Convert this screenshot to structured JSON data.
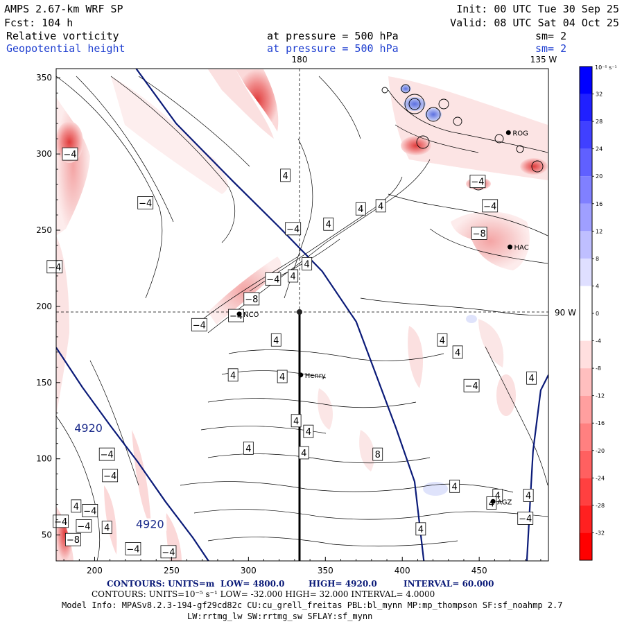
{
  "header": {
    "model": "AMPS 2.67-km WRF SP",
    "init": "Init: 00 UTC Tue 30 Sep 25",
    "fcst": "Fcst:  104 h",
    "valid": "Valid: 08 UTC Sat 04 Oct 25",
    "field1": {
      "name": "Relative vorticity",
      "pressure": "at pressure =  500 hPa",
      "sm": "sm= 2"
    },
    "field2": {
      "name": "Geopotential height",
      "pressure": "at pressure =  500 hPa",
      "sm": "sm= 2"
    }
  },
  "map_labels": {
    "top_180": "180",
    "top_135w": "135 W",
    "right_90w": "90 W"
  },
  "colors": {
    "height_contour": "#0a1a78",
    "positive": "#0000ff",
    "negative": "#ff0000",
    "neutral": "#ffffff",
    "text_blue": "#1f3fd0"
  },
  "stations": [
    {
      "name": "NCO",
      "x": 294,
      "y": 195
    },
    {
      "name": "Henry",
      "x": 334,
      "y": 155
    },
    {
      "name": "HAC",
      "x": 470,
      "y": 239
    },
    {
      "name": "ROG",
      "x": 469,
      "y": 314
    },
    {
      "name": "AGZ",
      "x": 459,
      "y": 72
    }
  ],
  "footer": {
    "line1_units": "CONTOURS:  UNITS=m",
    "line1_low": "LOW=  4800.0",
    "line1_high": "HIGH=  4920.0",
    "line1_interval": "INTERVAL=   60.000",
    "line2": "CONTOURS:  UNITS=10⁻⁵ s⁻¹  LOW=  -32.000        HIGH=  32.000        INTERVAL=   4.0000",
    "line3": "Model Info: MPASv8.2.3-194-gf29cd82c CU:cu_grell_freitas PBL:bl_mynn MP:mp_thompson SF:sf_noahmp 2.7",
    "line4": "LW:rrtmg_lw SW:rrtmg_sw SFLAY:sf_mynn"
  },
  "chart_data": {
    "type": "heatmap",
    "title": "Relative vorticity / Geopotential height at 500 hPa",
    "xlim": [
      175,
      495
    ],
    "ylim": [
      33,
      356
    ],
    "x_ticks": [
      200,
      250,
      300,
      350,
      400,
      450
    ],
    "y_ticks": [
      50,
      100,
      150,
      200,
      250,
      300,
      350
    ],
    "colorbar": {
      "unit_label": "10⁻⁵ s⁻¹",
      "levels": [
        -36,
        -32,
        -28,
        -24,
        -20,
        -16,
        -12,
        -8,
        -4,
        0,
        4,
        8,
        12,
        16,
        20,
        24,
        28,
        32,
        36
      ],
      "tick_labels": [
        "32",
        "28",
        "24",
        "20",
        "16",
        "12",
        "8",
        "4",
        "0",
        "-4",
        "-8",
        "-12",
        "-16",
        "-20",
        "-24",
        "-28",
        "-32"
      ],
      "tick_values": [
        32,
        28,
        24,
        20,
        16,
        12,
        8,
        4,
        0,
        -4,
        -8,
        -12,
        -16,
        -20,
        -24,
        -28,
        -32
      ]
    },
    "height_contours": {
      "unit": "m",
      "low": 4800.0,
      "high": 4920.0,
      "interval": 60.0,
      "labels": [
        {
          "text": "4920",
          "x": 196,
          "y": 118
        },
        {
          "text": "4920",
          "x": 236,
          "y": 55
        }
      ],
      "lines": [
        [
          [
            227,
            356
          ],
          [
            253,
            320
          ],
          [
            290,
            282
          ],
          [
            320,
            252
          ],
          [
            348,
            223
          ],
          [
            370,
            190
          ],
          [
            383,
            155
          ],
          [
            396,
            120
          ],
          [
            408,
            85
          ],
          [
            414,
            33
          ]
        ],
        [
          [
            175,
            173
          ],
          [
            192,
            147
          ],
          [
            210,
            122
          ],
          [
            228,
            98
          ],
          [
            246,
            72
          ],
          [
            264,
            48
          ],
          [
            274,
            33
          ]
        ],
        [
          [
            481,
            33
          ],
          [
            483,
            70
          ],
          [
            485,
            105
          ],
          [
            490,
            145
          ],
          [
            495,
            155
          ]
        ]
      ]
    },
    "vorticity_labels": [
      {
        "v": -4,
        "x": 184,
        "y": 300
      },
      {
        "v": -4,
        "x": 233,
        "y": 268
      },
      {
        "v": -4,
        "x": 174,
        "y": 226
      },
      {
        "v": 4,
        "x": 324,
        "y": 286
      },
      {
        "v": -4,
        "x": 329,
        "y": 251
      },
      {
        "v": -4,
        "x": 316,
        "y": 218
      },
      {
        "v": 4,
        "x": 329,
        "y": 220
      },
      {
        "v": -8,
        "x": 302,
        "y": 205
      },
      {
        "v": -4,
        "x": 292,
        "y": 194
      },
      {
        "v": -4,
        "x": 268,
        "y": 188
      },
      {
        "v": 4,
        "x": 352,
        "y": 254
      },
      {
        "v": 4,
        "x": 373,
        "y": 264
      },
      {
        "v": 4,
        "x": 386,
        "y": 266
      },
      {
        "v": 4,
        "x": 338,
        "y": 228
      },
      {
        "v": -4,
        "x": 449,
        "y": 282
      },
      {
        "v": -4,
        "x": 457,
        "y": 266
      },
      {
        "v": -8,
        "x": 450,
        "y": 248
      },
      {
        "v": 4,
        "x": 318,
        "y": 178
      },
      {
        "v": 4,
        "x": 426,
        "y": 178
      },
      {
        "v": 4,
        "x": 436,
        "y": 170
      },
      {
        "v": 4,
        "x": 290,
        "y": 155
      },
      {
        "v": 4,
        "x": 322,
        "y": 154
      },
      {
        "v": -4,
        "x": 445,
        "y": 148
      },
      {
        "v": 4,
        "x": 331,
        "y": 125
      },
      {
        "v": 4,
        "x": 339,
        "y": 118
      },
      {
        "v": 8,
        "x": 384,
        "y": 103
      },
      {
        "v": 4,
        "x": 300,
        "y": 107
      },
      {
        "v": 4,
        "x": 336,
        "y": 104
      },
      {
        "v": 4,
        "x": 434,
        "y": 82
      },
      {
        "v": 4,
        "x": 462,
        "y": 76
      },
      {
        "v": 4,
        "x": 482,
        "y": 76
      },
      {
        "v": 4,
        "x": 458,
        "y": 71
      },
      {
        "v": 4,
        "x": 188,
        "y": 69
      },
      {
        "v": -4,
        "x": 208,
        "y": 103
      },
      {
        "v": -4,
        "x": 210,
        "y": 89
      },
      {
        "v": -4,
        "x": 197,
        "y": 66
      },
      {
        "v": -4,
        "x": 178,
        "y": 59
      },
      {
        "v": -4,
        "x": 193,
        "y": 56
      },
      {
        "v": 4,
        "x": 208,
        "y": 55
      },
      {
        "v": -8,
        "x": 186,
        "y": 47
      },
      {
        "v": -4,
        "x": 225,
        "y": 41
      },
      {
        "v": -4,
        "x": 248,
        "y": 39
      },
      {
        "v": 4,
        "x": 412,
        "y": 54
      },
      {
        "v": -4,
        "x": 480,
        "y": 61
      },
      {
        "v": 4,
        "x": 484,
        "y": 153
      }
    ]
  }
}
